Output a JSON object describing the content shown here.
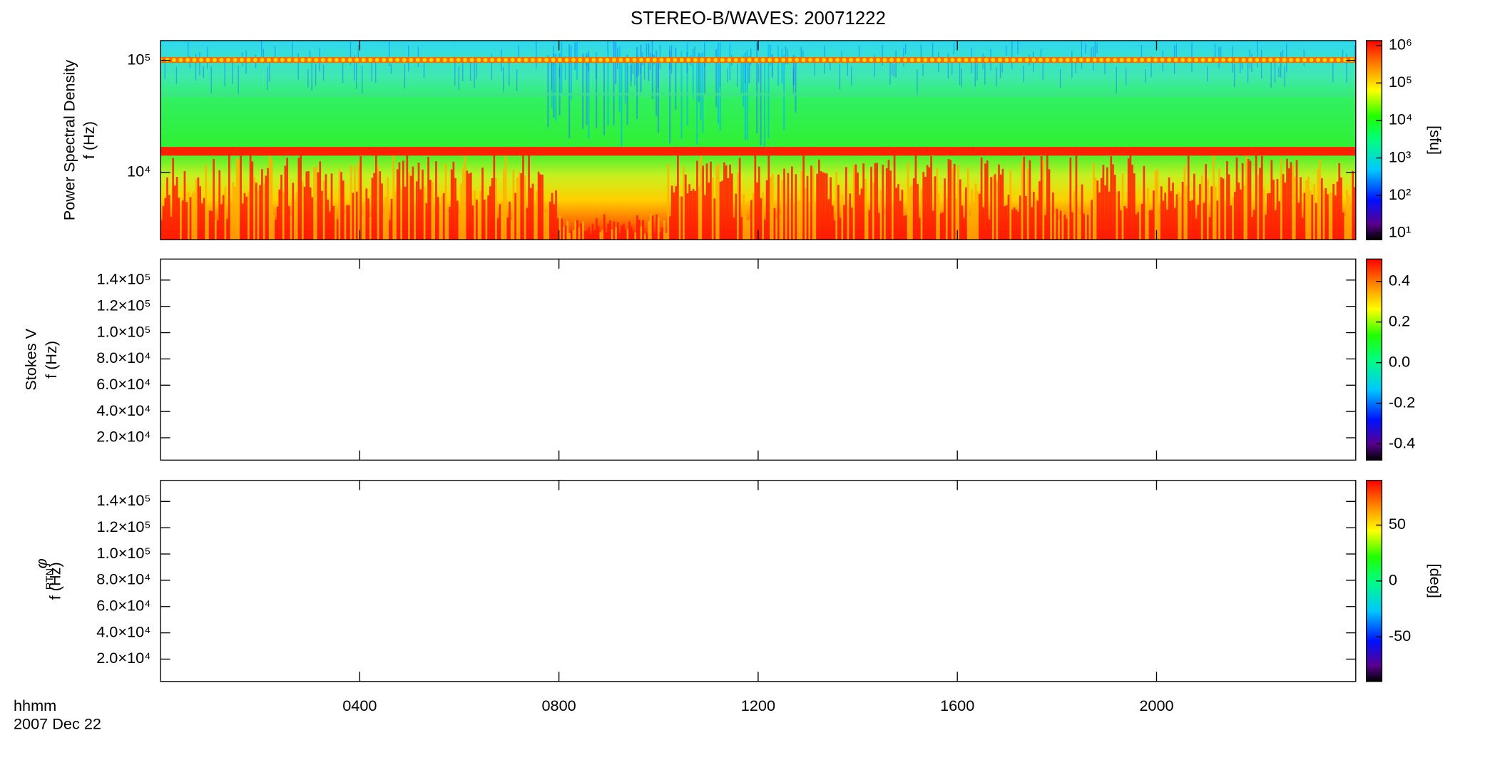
{
  "chart_data": [
    {
      "type": "heatmap",
      "title": "STEREO-B/WAVES: 20071222",
      "ylabel": "Power Spectral Density",
      "ylabel2": "f (Hz)",
      "log": true,
      "ylim": [
        2500,
        150000
      ],
      "yticks": [
        {
          "value": 10000,
          "label": "10⁴"
        },
        {
          "value": 100000,
          "label": "10⁵"
        }
      ],
      "colorbar": {
        "label": "[sfu]",
        "log": true,
        "lim": [
          6.6,
          1350000
        ],
        "ticks": [
          {
            "value": 10,
            "label": "10¹"
          },
          {
            "value": 100,
            "label": "10²"
          },
          {
            "value": 1000,
            "label": "10³"
          },
          {
            "value": 10000,
            "label": "10⁴"
          },
          {
            "value": 100000,
            "label": "10⁵"
          },
          {
            "value": 1000000,
            "label": "10⁶"
          }
        ]
      }
    },
    {
      "type": "heatmap",
      "ylabel": "Stokes V",
      "ylabel2": "f (Hz)",
      "log": false,
      "ylim": [
        3000,
        156000
      ],
      "yticks": [
        {
          "value": 20000,
          "label": "2.0×10⁴"
        },
        {
          "value": 40000,
          "label": "4.0×10⁴"
        },
        {
          "value": 60000,
          "label": "6.0×10⁴"
        },
        {
          "value": 80000,
          "label": "8.0×10⁴"
        },
        {
          "value": 100000,
          "label": "1.0×10⁵"
        },
        {
          "value": 120000,
          "label": "1.2×10⁵"
        },
        {
          "value": 140000,
          "label": "1.4×10⁵"
        }
      ],
      "colorbar": {
        "log": false,
        "lim": [
          -0.48,
          0.51
        ],
        "ticks": [
          -0.4,
          -0.2,
          {
            "value": 0,
            "label": "0.0"
          },
          0.2,
          0.4
        ]
      }
    },
    {
      "type": "heatmap",
      "ylabel": "φ",
      "ylabel_sub": "RTN",
      "ylabel2": "f (Hz)",
      "log": false,
      "ylim": [
        3000,
        156000
      ],
      "yticks": [
        {
          "value": 20000,
          "label": "2.0×10⁴"
        },
        {
          "value": 40000,
          "label": "4.0×10⁴"
        },
        {
          "value": 60000,
          "label": "6.0×10⁴"
        },
        {
          "value": 80000,
          "label": "8.0×10⁴"
        },
        {
          "value": 100000,
          "label": "1.0×10⁵"
        },
        {
          "value": 120000,
          "label": "1.2×10⁵"
        },
        {
          "value": 140000,
          "label": "1.4×10⁵"
        }
      ],
      "colorbar": {
        "label": "[deg]",
        "log": false,
        "lim": [
          -90,
          90
        ],
        "ticks": [
          -50,
          0,
          50
        ]
      },
      "xlabel": "hhmm",
      "date": "2007 Dec 22",
      "xlim": [
        0,
        24
      ],
      "xticks": [
        {
          "value": 4,
          "label": "0400"
        },
        {
          "value": 8,
          "label": "0800"
        },
        {
          "value": 12,
          "label": "1200"
        },
        {
          "value": 16,
          "label": "1600"
        },
        {
          "value": 20,
          "label": "2000"
        }
      ]
    }
  ]
}
